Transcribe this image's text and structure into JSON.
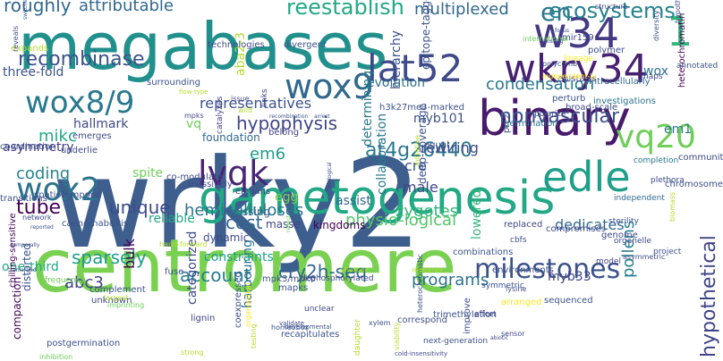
{
  "colors": {
    "background": "#ffffff",
    "palette": [
      "#440154",
      "#482878",
      "#3e4989",
      "#31688e",
      "#26828e",
      "#1f9e89",
      "#35b779",
      "#6ece58",
      "#b5de2b",
      "#fde725"
    ]
  },
  "words": [
    {
      "text": "wrky2",
      "color": "#3e5f8e"
    },
    {
      "text": "megabases",
      "color": "#21908d"
    },
    {
      "text": "centromere",
      "color": "#7ad151"
    },
    {
      "text": "gametogenesis",
      "color": "#22a884"
    },
    {
      "text": "binary",
      "color": "#481a6c"
    },
    {
      "text": "w34",
      "color": "#443a83"
    },
    {
      "text": "1",
      "color": "#35b779"
    },
    {
      "text": "wkry34",
      "color": "#482071"
    },
    {
      "text": "lat52",
      "color": "#3e4a89"
    },
    {
      "text": "wox9",
      "color": "#31688e"
    },
    {
      "text": "wox8/9",
      "color": "#2a788e"
    },
    {
      "text": "lvqk",
      "color": "#482576"
    },
    {
      "text": "edle",
      "color": "#1f9e89"
    },
    {
      "text": "wox2",
      "color": "#2c728e"
    },
    {
      "text": "vq20",
      "color": "#6ece58"
    },
    {
      "text": "en",
      "color": "#2a788e"
    },
    {
      "text": "milestones",
      "color": "#3b528b"
    },
    {
      "text": "reestablish",
      "color": "#22a884"
    },
    {
      "text": "multiplexed",
      "color": "#31688e"
    },
    {
      "text": "ecosystems",
      "color": "#26828e"
    },
    {
      "text": "recombinase",
      "color": "#3b528b"
    },
    {
      "text": "hypophysis",
      "color": "#414487"
    },
    {
      "text": "at4g26440",
      "color": "#2a788e"
    },
    {
      "text": "nonvascular",
      "color": "#3b528b"
    },
    {
      "text": "condensation",
      "color": "#2a788e"
    },
    {
      "text": "sparsely",
      "color": "#1f9e89"
    },
    {
      "text": "account",
      "color": "#287c8e"
    },
    {
      "text": "cry2h-seq",
      "color": "#31688e"
    },
    {
      "text": "programs",
      "color": "#2c728e"
    },
    {
      "text": "pollens",
      "color": "#287c8e"
    },
    {
      "text": "hemicelluloses",
      "color": "#2c728e"
    },
    {
      "text": "physio-logical",
      "color": "#52c569"
    },
    {
      "text": "dedicates",
      "color": "#31688e"
    },
    {
      "text": "tube",
      "color": "#440154"
    },
    {
      "text": "unique",
      "color": "#3e4989"
    },
    {
      "text": "coding",
      "color": "#26828e"
    },
    {
      "text": "cost",
      "color": "#31688e"
    },
    {
      "text": "em6",
      "color": "#1f9e89"
    },
    {
      "text": "abc3",
      "color": "#414487"
    },
    {
      "text": "roughly",
      "color": "#31688e"
    },
    {
      "text": "attributable",
      "color": "#31688e"
    },
    {
      "text": "mikc",
      "color": "#22a884"
    },
    {
      "text": "em1",
      "color": "#2a788e"
    },
    {
      "text": "cre",
      "color": "#3b528b"
    },
    {
      "text": "male",
      "color": "#414487"
    },
    {
      "text": "egg",
      "color": "#7ad151"
    },
    {
      "text": "zygotes",
      "color": "#35b779"
    },
    {
      "text": "rewiring",
      "color": "#3e4989"
    },
    {
      "text": "lowered",
      "color": "#35b779"
    },
    {
      "text": "hypothetical",
      "color": "#414487"
    },
    {
      "text": "myb101",
      "color": "#3b528b"
    },
    {
      "text": "assist",
      "color": "#31688e"
    },
    {
      "text": "collaboration",
      "color": "#2a788e"
    },
    {
      "text": "harbouring",
      "color": "#2c728e"
    },
    {
      "text": "determining",
      "color": "#2a788e"
    },
    {
      "text": "hierarchy",
      "color": "#3b528b"
    },
    {
      "text": "evolution",
      "color": "#2c728e"
    },
    {
      "text": "representatives",
      "color": "#3b528b"
    },
    {
      "text": "wox",
      "color": "#2c728e"
    },
    {
      "text": "asymmetry",
      "color": "#443a83"
    },
    {
      "text": "hallmark",
      "color": "#3e4989"
    },
    {
      "text": "three-fold",
      "color": "#3b528b"
    },
    {
      "text": "aba2-3",
      "color": "#b5de2b"
    },
    {
      "text": "vq",
      "color": "#6ece58"
    },
    {
      "text": "one-third",
      "color": "#22a884"
    },
    {
      "text": "compaction",
      "color": "#440154"
    },
    {
      "text": "distorted",
      "color": "#3b528b"
    },
    {
      "text": "constraints",
      "color": "#1f9e89"
    },
    {
      "text": "categorized",
      "color": "#3e4989"
    },
    {
      "text": "deep-coverage",
      "color": "#3b528b"
    },
    {
      "text": "myb33",
      "color": "#414487"
    },
    {
      "text": "reliable",
      "color": "#22a884"
    },
    {
      "text": "bulk",
      "color": "#440154"
    },
    {
      "text": "foundation",
      "color": "#31688e"
    },
    {
      "text": "spite",
      "color": "#6ece58"
    },
    {
      "text": "missing",
      "color": "#31688e"
    },
    {
      "text": "dynamic",
      "color": "#3e4989"
    },
    {
      "text": "kingdoms",
      "color": "#440154"
    },
    {
      "text": "masse",
      "color": "#414487"
    },
    {
      "text": "epitope-tagged",
      "color": "#3b528b"
    },
    {
      "text": "mir159",
      "color": "#3e4989"
    },
    {
      "text": "polymer",
      "color": "#3e4989"
    },
    {
      "text": "epistasis",
      "color": "#414487"
    },
    {
      "text": "intracellularly",
      "color": "#31688e"
    },
    {
      "text": "structure",
      "color": "#3e4989"
    },
    {
      "text": "investigations",
      "color": "#2c728e"
    },
    {
      "text": "broad-scale",
      "color": "#3e4989"
    },
    {
      "text": "h3k27me3-marked",
      "color": "#3b528b"
    },
    {
      "text": "perturb",
      "color": "#3b528b"
    },
    {
      "text": "polarize",
      "color": "#414487"
    },
    {
      "text": "heterochromatin",
      "color": "#440154"
    },
    {
      "text": "community",
      "color": "#3e4989"
    },
    {
      "text": "chromosome",
      "color": "#3b528b"
    },
    {
      "text": "completion",
      "color": "#2a788e"
    },
    {
      "text": "plethora",
      "color": "#3e4989"
    },
    {
      "text": "independent",
      "color": "#31688e"
    },
    {
      "text": "germination",
      "color": "#2c728e"
    },
    {
      "text": "equal",
      "color": "#3b528b"
    },
    {
      "text": "prc2",
      "color": "#3b528b"
    },
    {
      "text": "initiative",
      "color": "#b5de2b"
    },
    {
      "text": "belong",
      "color": "#414487"
    },
    {
      "text": "emerges",
      "color": "#3e4989"
    },
    {
      "text": "underlie",
      "color": "#3e4989"
    },
    {
      "text": "coordination",
      "color": "#3b528b"
    },
    {
      "text": "transitions",
      "color": "#3b528b"
    },
    {
      "text": "spatiotemporal",
      "color": "#3b528b"
    },
    {
      "text": "caenorhabditis",
      "color": "#3b528b"
    },
    {
      "text": "elegans",
      "color": "#3e4989"
    },
    {
      "text": "massively",
      "color": "#3e4989"
    },
    {
      "text": "co-modulate",
      "color": "#3e4989"
    },
    {
      "text": "chilling-sensitive",
      "color": "#440154"
    },
    {
      "text": "postgermination",
      "color": "#3b528b"
    },
    {
      "text": "coexpressed",
      "color": "#3b528b"
    },
    {
      "text": "complement",
      "color": "#3b528b"
    },
    {
      "text": "unknown",
      "color": "#3e4989"
    },
    {
      "text": "frequency",
      "color": "#6ece58"
    },
    {
      "text": "fuse",
      "color": "#3b528b"
    },
    {
      "text": "lignin",
      "color": "#414487"
    },
    {
      "text": "mpk3/mpk6",
      "color": "#3b528b"
    },
    {
      "text": "mapks",
      "color": "#3b528b"
    },
    {
      "text": "recapitulates",
      "color": "#3b528b"
    },
    {
      "text": "correspond",
      "color": "#3b528b"
    },
    {
      "text": "combinations",
      "color": "#3b528b"
    },
    {
      "text": "environments",
      "color": "#3b528b"
    },
    {
      "text": "replaced",
      "color": "#414487"
    },
    {
      "text": "cbfs",
      "color": "#3b528b"
    },
    {
      "text": "compromises",
      "color": "#3e4989"
    },
    {
      "text": "sterility",
      "color": "#3b528b"
    },
    {
      "text": "genome",
      "color": "#3e4989"
    },
    {
      "text": "organelle",
      "color": "#3e4989"
    },
    {
      "text": "model",
      "color": "#414487"
    },
    {
      "text": "project",
      "color": "#3b528b"
    },
    {
      "text": "symmetric",
      "color": "#3b528b"
    },
    {
      "text": "arranged",
      "color": "#fde725"
    },
    {
      "text": "sequenced",
      "color": "#3b528b"
    },
    {
      "text": "effort",
      "color": "#414487"
    },
    {
      "text": "improve",
      "color": "#3b528b"
    },
    {
      "text": "trimethylation",
      "color": "#3b528b"
    },
    {
      "text": "heterochromatic",
      "color": "#3b528b"
    },
    {
      "text": "next-generation",
      "color": "#3b528b"
    },
    {
      "text": "viability",
      "color": "#b5de2b"
    },
    {
      "text": "daughter",
      "color": "#b5de2b"
    },
    {
      "text": "unclear",
      "color": "#3e4989"
    },
    {
      "text": "dephosphorylated",
      "color": "#3e4989"
    },
    {
      "text": "technologies",
      "color": "#3e4989"
    },
    {
      "text": "catalyzes",
      "color": "#414487"
    },
    {
      "text": "links",
      "color": "#414487"
    },
    {
      "text": "divergent",
      "color": "#3b528b"
    },
    {
      "text": "surrounding",
      "color": "#3b528b"
    },
    {
      "text": "issue",
      "color": "#3e4989"
    },
    {
      "text": "mpks",
      "color": "#3e4989"
    },
    {
      "text": "expands",
      "color": "#b5de2b"
    },
    {
      "text": "reveals",
      "color": "#3e4989"
    },
    {
      "text": "hypotheses",
      "color": "#3e4989"
    },
    {
      "text": "annotated",
      "color": "#3b528b"
    },
    {
      "text": "maps",
      "color": "#3e4989"
    },
    {
      "text": "independent-ly",
      "color": "#fde725"
    },
    {
      "text": "lineage",
      "color": "#fde725"
    },
    {
      "text": "polycomb",
      "color": "#3b528b"
    },
    {
      "text": "diversity",
      "color": "#3b528b"
    },
    {
      "text": "international",
      "color": "#6ece58"
    },
    {
      "text": "biomass",
      "color": "#b5de2b"
    },
    {
      "text": "network",
      "color": "#3e4989"
    },
    {
      "text": "hand-forward",
      "color": "#b5de2b"
    },
    {
      "text": "reflect",
      "color": "#6ece58"
    },
    {
      "text": "lysine",
      "color": "#3b528b"
    },
    {
      "text": "cold-insensitivity",
      "color": "#3e4989"
    },
    {
      "text": "validate",
      "color": "#3e4989"
    },
    {
      "text": "strong",
      "color": "#b5de2b"
    },
    {
      "text": "inhibition",
      "color": "#6ece58"
    },
    {
      "text": "imprinting",
      "color": "#6ece58"
    },
    {
      "text": "largest",
      "color": "#b5de2b"
    },
    {
      "text": "organization",
      "color": "#fde725"
    },
    {
      "text": "testing",
      "color": "#b5de2b"
    },
    {
      "text": "homeobox",
      "color": "#3b528b"
    },
    {
      "text": "developmental",
      "color": "#3b528b"
    },
    {
      "text": "sensor",
      "color": "#3e4989"
    },
    {
      "text": "asymmetric",
      "color": "#3b528b"
    },
    {
      "text": "xylem",
      "color": "#3b528b"
    },
    {
      "text": "wild",
      "color": "#b5de2b"
    },
    {
      "text": "recombination",
      "color": "#3b528b"
    },
    {
      "text": "arrest",
      "color": "#3b528b"
    },
    {
      "text": "switches",
      "color": "#3b528b"
    },
    {
      "text": "reported",
      "color": "#3b528b"
    },
    {
      "text": "temporally",
      "color": "#3b528b"
    },
    {
      "text": "flow-type",
      "color": "#b5de2b"
    },
    {
      "text": "enlarged",
      "color": "#3b528b"
    },
    {
      "text": "existing",
      "color": "#3e4989"
    },
    {
      "text": "focus",
      "color": "#3e4989"
    },
    {
      "text": "biological",
      "color": "#3e4989"
    },
    {
      "text": "advancing",
      "color": "#b5de2b"
    },
    {
      "text": "degenerate",
      "color": "#b5de2b"
    },
    {
      "text": "abiotic",
      "color": "#3e4989"
    }
  ]
}
